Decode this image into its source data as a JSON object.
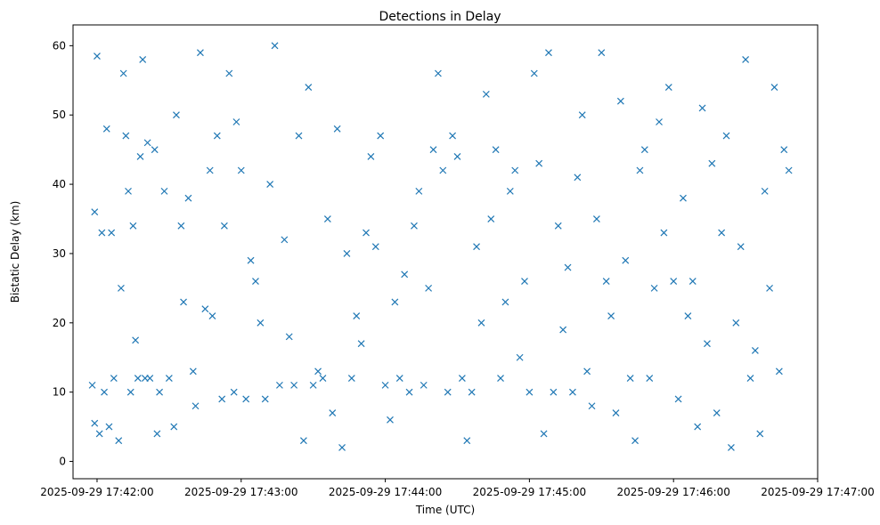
{
  "chart_data": {
    "type": "scatter",
    "title": "Detections in Delay",
    "xlabel": "Time (UTC)",
    "ylabel": "Bistatic Delay (km)",
    "marker": "x",
    "color": "#1f77b4",
    "xlim_seconds": [
      -10,
      300
    ],
    "ylim": [
      -2.5,
      63
    ],
    "x_ticks": [
      {
        "value": 0,
        "label": "2025-09-29 17:42:00"
      },
      {
        "value": 60,
        "label": "2025-09-29 17:43:00"
      },
      {
        "value": 120,
        "label": "2025-09-29 17:44:00"
      },
      {
        "value": 180,
        "label": "2025-09-29 17:45:00"
      },
      {
        "value": 240,
        "label": "2025-09-29 17:46:00"
      },
      {
        "value": 300,
        "label": "2025-09-29 17:47:00"
      }
    ],
    "y_ticks": [
      0,
      10,
      20,
      30,
      40,
      50,
      60
    ],
    "x_seconds_after_17_42": [
      -2,
      -1,
      -1,
      0,
      1,
      2,
      3,
      4,
      5,
      6,
      7,
      9,
      10,
      11,
      12,
      13,
      14,
      15,
      16,
      17,
      18,
      19,
      20,
      21,
      22,
      24,
      25,
      26,
      28,
      30,
      32,
      33,
      35,
      36,
      38,
      40,
      41,
      43,
      45,
      47,
      48,
      50,
      52,
      53,
      55,
      57,
      58,
      60,
      62,
      64,
      66,
      68,
      70,
      72,
      74,
      76,
      78,
      80,
      82,
      84,
      86,
      88,
      90,
      92,
      94,
      96,
      98,
      100,
      102,
      104,
      106,
      108,
      110,
      112,
      114,
      116,
      118,
      120,
      122,
      124,
      126,
      128,
      130,
      132,
      134,
      136,
      138,
      140,
      142,
      144,
      146,
      148,
      150,
      152,
      154,
      156,
      158,
      160,
      162,
      164,
      166,
      168,
      170,
      172,
      174,
      176,
      178,
      180,
      182,
      184,
      186,
      188,
      190,
      192,
      194,
      196,
      198,
      200,
      202,
      204,
      206,
      208,
      210,
      212,
      214,
      216,
      218,
      220,
      222,
      224,
      226,
      228,
      230,
      232,
      234,
      236,
      238,
      240,
      242,
      244,
      246,
      248,
      250,
      252,
      254,
      256,
      258,
      260,
      262,
      264,
      266,
      268,
      270,
      272,
      274,
      276,
      278,
      280,
      282,
      284,
      286,
      288
    ],
    "y_km": [
      11,
      36,
      5.5,
      58.5,
      4,
      33,
      10,
      48,
      5,
      33,
      12,
      3,
      25,
      56,
      47,
      39,
      10,
      34,
      17.5,
      12,
      44,
      58,
      12,
      46,
      12,
      45,
      4,
      10,
      39,
      12,
      5,
      50,
      34,
      23,
      38,
      13,
      8,
      59,
      22,
      42,
      21,
      47,
      9,
      34,
      56,
      10,
      49,
      42,
      9,
      29,
      26,
      20,
      9,
      40,
      60,
      11,
      32,
      18,
      11,
      47,
      3,
      54,
      11,
      13,
      12,
      35,
      7,
      48,
      2,
      30,
      12,
      21,
      17,
      33,
      44,
      31,
      47,
      11,
      6,
      23,
      12,
      27,
      10,
      34,
      39,
      11,
      25,
      45,
      56,
      42,
      10,
      47,
      44,
      12,
      3,
      10,
      31,
      20,
      53,
      35,
      45,
      12,
      23,
      39,
      42,
      15,
      26,
      10,
      56,
      43,
      4,
      59,
      10,
      34,
      19,
      28,
      10,
      41,
      50,
      13,
      8,
      35,
      59,
      26,
      21,
      7,
      52,
      29,
      12,
      3,
      42,
      45,
      12,
      25,
      49,
      33,
      54,
      26,
      9,
      38,
      21,
      26,
      5,
      51,
      17,
      43,
      7,
      33,
      47,
      2,
      20,
      31,
      58,
      12,
      16,
      4,
      39,
      25,
      54,
      13,
      45,
      42
    ]
  }
}
